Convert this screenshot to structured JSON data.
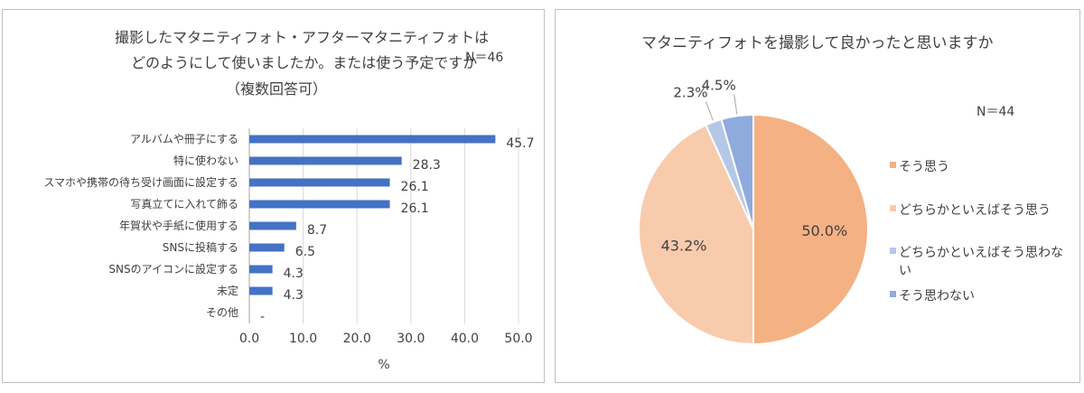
{
  "chart_data": [
    {
      "type": "bar",
      "orientation": "horizontal",
      "title": [
        "撮影したマタニティフォト・アフターマタニティフォトは",
        "どのようにして使いましたか。または使う予定ですか",
        "（複数回答可）"
      ],
      "n_label": "N＝46",
      "xlabel": "%",
      "xlim": [
        0,
        50
      ],
      "xticks": [
        "0.0",
        "10.0",
        "20.0",
        "30.0",
        "40.0",
        "50.0"
      ],
      "grid": true,
      "color": "#4472c4",
      "categories": [
        "アルバムや冊子にする",
        "特に使わない",
        "スマホや携帯の待ち受け画面に設定する",
        "写真立てに入れて飾る",
        "年賀状や手紙に使用する",
        "SNSに投稿する",
        "SNSのアイコンに設定する",
        "未定",
        "その他"
      ],
      "values": [
        45.7,
        28.3,
        26.1,
        26.1,
        8.7,
        6.5,
        4.3,
        4.3,
        0
      ],
      "value_labels": [
        "45.7",
        "28.3",
        "26.1",
        "26.1",
        "8.7",
        "6.5",
        "4.3",
        "4.3",
        "-"
      ]
    },
    {
      "type": "pie",
      "title": "マタニティフォトを撮影して良かったと思いますか",
      "n_label": "N＝44",
      "legend_position": "right",
      "slices": [
        {
          "label": "そう思う",
          "value": 50.0,
          "value_label": "50.0%",
          "color": "#f4b183"
        },
        {
          "label": "どちらかといえばそう思う",
          "value": 43.2,
          "value_label": "43.2%",
          "color": "#f8cbad"
        },
        {
          "label": "どちらかといえばそう思わない",
          "value": 2.3,
          "value_label": "2.3%",
          "color": "#b4c7e7"
        },
        {
          "label": "そう思わない",
          "value": 4.5,
          "value_label": "4.5%",
          "color": "#8faadc"
        }
      ]
    }
  ]
}
